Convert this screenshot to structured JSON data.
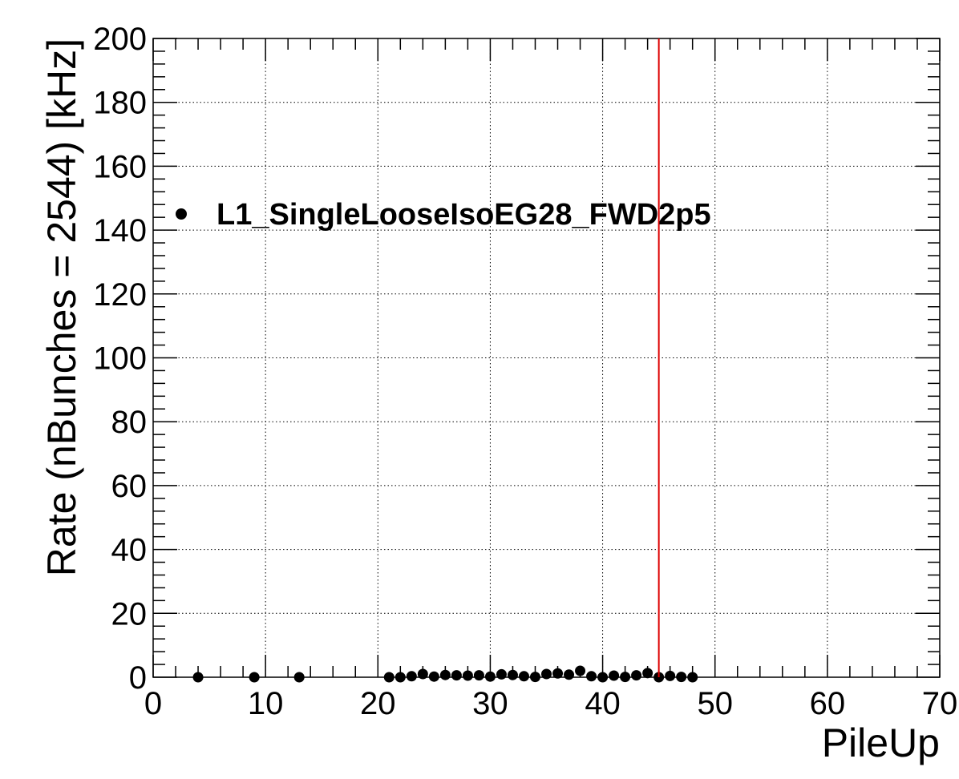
{
  "chart_data": {
    "type": "scatter",
    "xlabel": "PileUp",
    "ylabel": "Rate (nBunches = 2544) [kHz]",
    "xlim": [
      0,
      70
    ],
    "ylim": [
      0,
      200
    ],
    "x_ticks": [
      0,
      10,
      20,
      30,
      40,
      50,
      60,
      70
    ],
    "y_ticks": [
      0,
      20,
      40,
      60,
      80,
      100,
      120,
      140,
      160,
      180,
      200
    ],
    "x_tick_labels": [
      "0",
      "10",
      "20",
      "30",
      "40",
      "50",
      "60",
      "70"
    ],
    "y_tick_labels": [
      "0",
      "20",
      "40",
      "60",
      "80",
      "100",
      "120",
      "140",
      "160",
      "180",
      "200"
    ],
    "grid": true,
    "legend_position": "top-left",
    "series": [
      {
        "name": "L1_SingleLooseIsoEG28_FWD2p5",
        "color": "#000000",
        "x": [
          4,
          9,
          13,
          21,
          22,
          23,
          24,
          25,
          26,
          27,
          28,
          29,
          30,
          31,
          32,
          33,
          34,
          35,
          36,
          37,
          38,
          39,
          40,
          41,
          42,
          43,
          44,
          45,
          46,
          47,
          48
        ],
        "y": [
          0,
          0,
          0,
          0,
          0,
          0.3,
          1,
          0.2,
          0.7,
          0.6,
          0.5,
          0.6,
          0.2,
          0.9,
          0.7,
          0.3,
          0.1,
          1,
          1.2,
          0.8,
          2,
          0.3,
          0,
          0.5,
          0.1,
          0.6,
          1.3,
          0,
          0.4,
          0.1,
          0
        ]
      }
    ],
    "vertical_line": {
      "x": 45,
      "color": "#dd0000"
    }
  }
}
